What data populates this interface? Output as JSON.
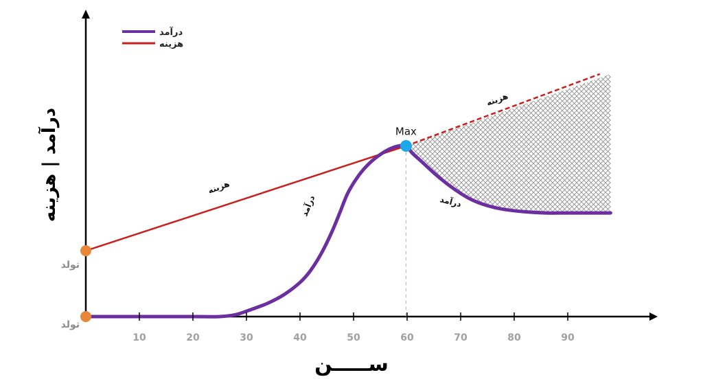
{
  "chart_data": {
    "type": "line",
    "ylabel": "درآمد | هزینه",
    "xlabel": "ســـــن",
    "x_ticks": [
      10,
      20,
      30,
      40,
      50,
      60,
      70,
      80,
      90
    ],
    "xlim": [
      0,
      100
    ],
    "ylim": [
      0,
      100
    ],
    "grid": false,
    "legend_position": "top-left",
    "legend": [
      {
        "label": "درآمد",
        "color": "#6b2fa0"
      },
      {
        "label": "هزینه",
        "color": "#c8201e"
      }
    ],
    "y_markers": [
      {
        "label": "تولد",
        "y": 27,
        "color": "#e8873a"
      },
      {
        "label": "تولد",
        "y": 0,
        "color": "#e8873a"
      }
    ],
    "max_point": {
      "label": "Max",
      "x": 59.8,
      "y": 70,
      "color": "#1ea8e8"
    },
    "series": [
      {
        "name": "درآمد",
        "color": "#6b2fa0",
        "points": [
          [
            0,
            0
          ],
          [
            10,
            0
          ],
          [
            20,
            0
          ],
          [
            25,
            0
          ],
          [
            28,
            0.8
          ],
          [
            31,
            3
          ],
          [
            34,
            5.5
          ],
          [
            37,
            9
          ],
          [
            40,
            14
          ],
          [
            42,
            19
          ],
          [
            44,
            26
          ],
          [
            46,
            35
          ],
          [
            47.5,
            43
          ],
          [
            49,
            51
          ],
          [
            51,
            58
          ],
          [
            53,
            63
          ],
          [
            55,
            66.5
          ],
          [
            57,
            69
          ],
          [
            58.5,
            70
          ],
          [
            59.8,
            70
          ],
          [
            61,
            67
          ],
          [
            63,
            63
          ],
          [
            66,
            57
          ],
          [
            69,
            52
          ],
          [
            72,
            48
          ],
          [
            75,
            45.5
          ],
          [
            78,
            44
          ],
          [
            82,
            43
          ],
          [
            86,
            42.5
          ],
          [
            90,
            42.5
          ],
          [
            95,
            42.5
          ],
          [
            98,
            42.5
          ]
        ]
      },
      {
        "name": "هزینه",
        "color": "#c8201e",
        "solid_until_x": 59.8,
        "points": [
          [
            0,
            27
          ],
          [
            59.8,
            70
          ],
          [
            96,
            99.5
          ]
        ]
      }
    ],
    "shaded_region": {
      "between": [
        "هزینه",
        "درآمد"
      ],
      "x_from": 59.8,
      "x_to": 98,
      "pattern": "crosshatch"
    },
    "curve_labels": [
      {
        "text": "هزینه",
        "x": 25,
        "y": 52
      },
      {
        "text": "هزینه",
        "x": 77,
        "y": 88
      },
      {
        "text": "درآمد",
        "x": 42,
        "y": 45
      },
      {
        "text": "درآمد",
        "x": 68,
        "y": 46
      }
    ]
  }
}
